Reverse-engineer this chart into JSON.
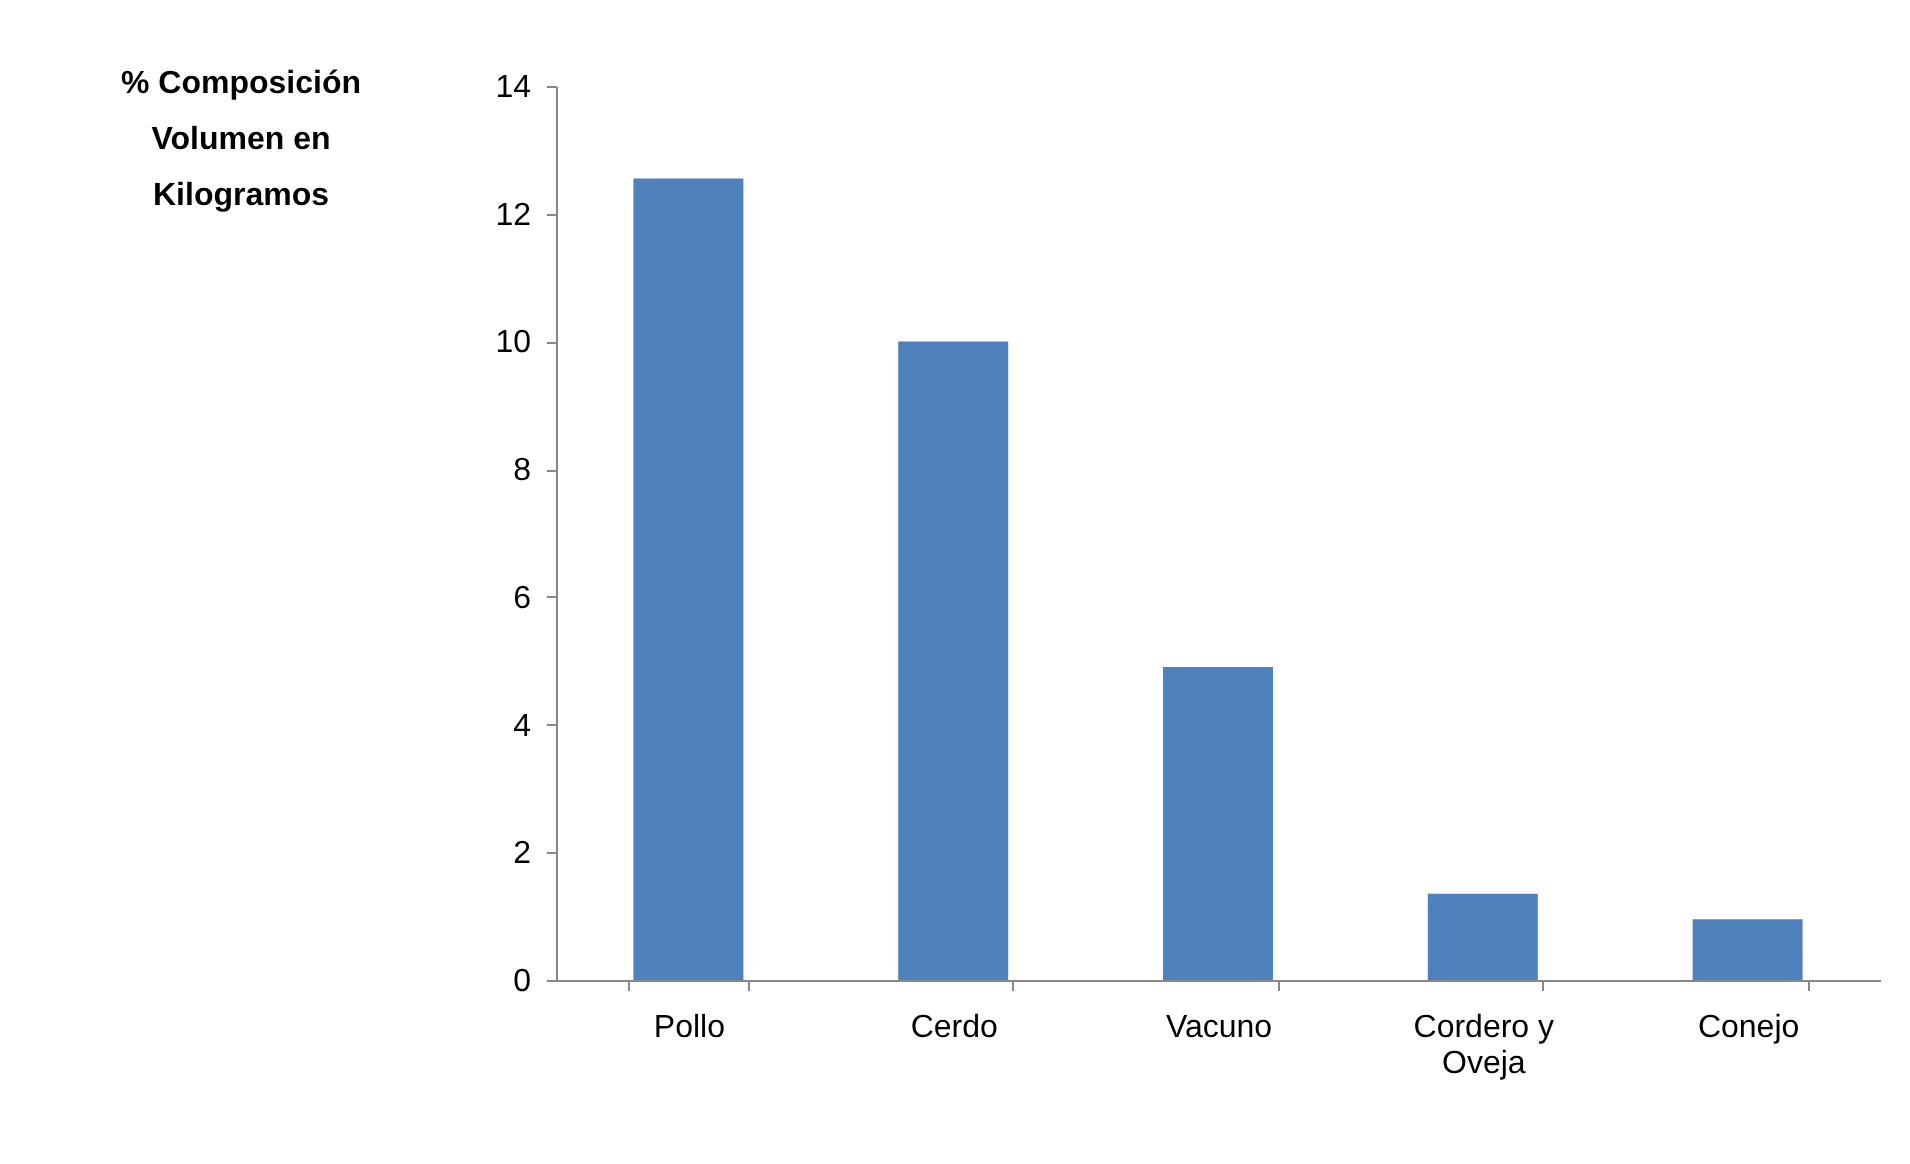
{
  "chart_data": {
    "type": "bar",
    "ylabel": "% Composición Volumen en Kilogramos",
    "categories": [
      "Pollo",
      "Cerdo",
      "Vacuno",
      "Cordero y Oveja",
      "Conejo"
    ],
    "values": [
      12.55,
      10.0,
      4.9,
      1.35,
      0.95
    ],
    "color": "#4f81bd",
    "ylim": [
      0,
      14
    ],
    "yticks": [
      0,
      2,
      4,
      6,
      8,
      10,
      12,
      14
    ],
    "grid": false
  }
}
